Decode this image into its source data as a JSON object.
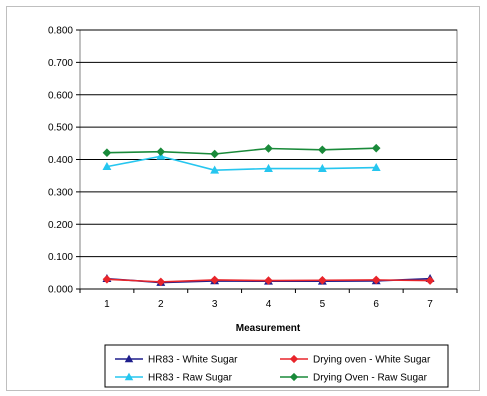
{
  "chart_data": {
    "type": "line",
    "title": "",
    "xlabel": "Measurement",
    "ylabel": "",
    "x": [
      1,
      2,
      3,
      4,
      5,
      6,
      7
    ],
    "ylim": [
      0,
      0.8
    ],
    "yticks": [
      "0.000",
      "0.100",
      "0.200",
      "0.300",
      "0.400",
      "0.500",
      "0.600",
      "0.700",
      "0.800"
    ],
    "grid": "horizontal",
    "legend_position": "bottom",
    "series": [
      {
        "name": "HR83 - White Sugar",
        "color": "#1f1f8c",
        "marker": "triangle",
        "values": [
          0.032,
          0.02,
          0.025,
          0.024,
          0.024,
          0.025,
          0.032
        ]
      },
      {
        "name": "Drying oven - White Sugar",
        "color": "#e8252b",
        "marker": "diamond",
        "values": [
          0.03,
          0.022,
          0.028,
          0.026,
          0.027,
          0.028,
          0.026
        ]
      },
      {
        "name": "HR83 - Raw Sugar",
        "color": "#26c6ef",
        "marker": "triangle",
        "values": [
          0.378,
          0.41,
          0.367,
          0.372,
          0.372,
          0.375,
          null
        ]
      },
      {
        "name": "Drying Oven - Raw Sugar",
        "color": "#1a8a3a",
        "marker": "diamond",
        "values": [
          0.421,
          0.424,
          0.417,
          0.434,
          0.43,
          0.435,
          null
        ]
      }
    ]
  }
}
